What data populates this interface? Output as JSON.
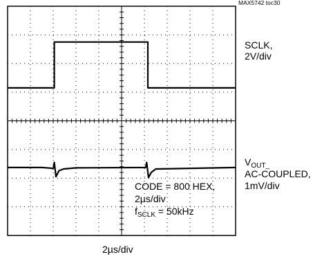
{
  "figure_ref": "MAX5742 toc30",
  "channels": {
    "ch1": {
      "name": "SCLK,",
      "scale": "2V/div"
    },
    "ch2": {
      "name_main": "V",
      "name_sub": "OUT_",
      "line2": "AC-COUPLED,",
      "scale": "1mV/div"
    }
  },
  "annotation": {
    "code": "CODE = 800 HEX,",
    "timebase": "2µs/div",
    "freq_main": "f",
    "freq_sub": "SCLK",
    "freq_value": " = 50kHz"
  },
  "xlabel": "2µs/div",
  "chart_data": {
    "type": "line",
    "grid": true,
    "x_divisions": 10,
    "y_divisions": 8,
    "xlabel": "2µs/div",
    "series": [
      {
        "name": "SCLK, 2V/div",
        "x_div": [
          0,
          2.05,
          2.05,
          6.15,
          6.15,
          10
        ],
        "y_div": [
          5.15,
          5.15,
          6.75,
          6.75,
          5.15,
          5.15
        ]
      },
      {
        "name": "VOUT_ AC-COUPLED, 1mV/div",
        "x_div": [
          0,
          1.5,
          1.9,
          2.0,
          2.05,
          2.12,
          2.25,
          2.45,
          3.0,
          6.05,
          6.1,
          6.18,
          6.3,
          6.5,
          10
        ],
        "y_div": [
          2.37,
          2.37,
          2.35,
          2.33,
          2.55,
          2.05,
          2.26,
          2.32,
          2.36,
          2.37,
          2.55,
          2.02,
          2.2,
          2.32,
          2.37
        ]
      }
    ]
  }
}
